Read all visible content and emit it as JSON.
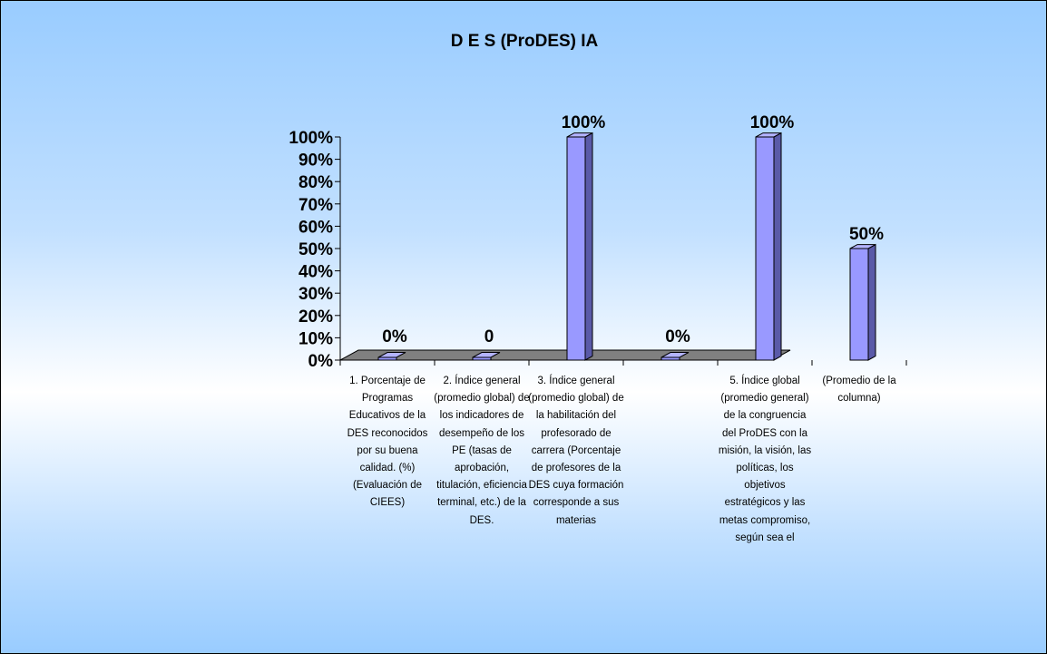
{
  "chart_data": {
    "type": "bar",
    "title": "D E S (ProDES) IA",
    "xlabel": "",
    "ylabel": "",
    "ylim": [
      0,
      1
    ],
    "yticks": [
      "0%",
      "10%",
      "20%",
      "30%",
      "40%",
      "50%",
      "60%",
      "70%",
      "80%",
      "90%",
      "100%"
    ],
    "grid": false,
    "style": "3d-column",
    "colors": {
      "bar_front": "#9999ff",
      "bar_side": "#5a5aa8",
      "bar_top": "#b3b3ff",
      "floor": "#808080",
      "outline": "#000000"
    },
    "categories": [
      "1. Porcentaje de Programas Educativos de la DES reconocidos por su buena calidad. (%) (Evaluación de CIEES)",
      "2. Índice general (promedio global) de los indicadores de desempeño de los PE (tasas de aprobación, titulación, eficiencia terminal, etc.) de la DES.",
      "3. Índice general (promedio global) de la habilitación del profesorado de carrera (Porcentaje de profesores de la DES cuya formación corresponde a sus materias",
      "",
      "5. Índice global (promedio general) de la congruencia del ProDES con la misión, la visión, las políticas, los objetivos estratégicos y las metas compromiso, según sea el",
      "(Promedio de la columna)"
    ],
    "values": [
      0,
      0,
      1,
      0,
      1,
      0.5
    ],
    "data_labels": [
      "0%",
      "0",
      "100%",
      "0%",
      "100%",
      "50%"
    ]
  }
}
